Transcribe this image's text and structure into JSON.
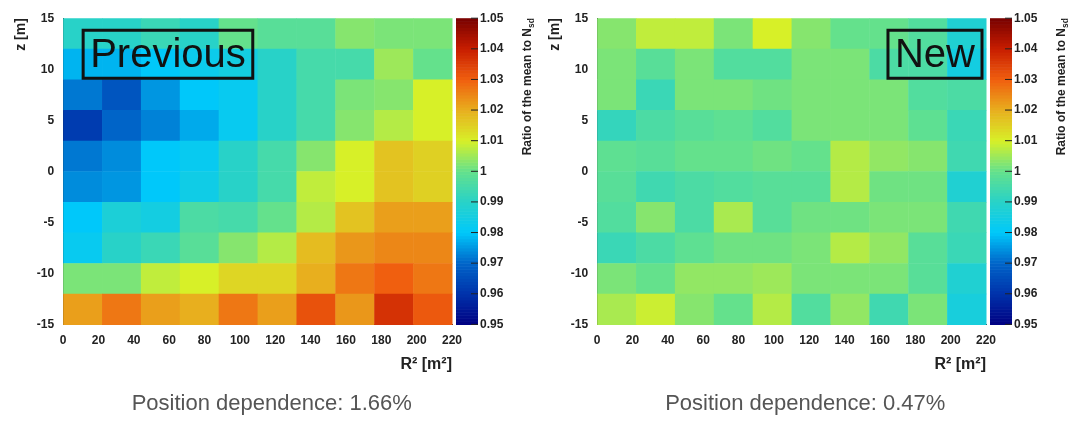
{
  "chart_data": [
    {
      "type": "heatmap",
      "xlabel": "R² [m²]",
      "ylabel": "z [m]",
      "clabel": "Ratio of the mean to N$_{sd}$",
      "xlim": [
        0,
        220
      ],
      "xticks": [
        0,
        20,
        40,
        60,
        80,
        100,
        120,
        140,
        160,
        180,
        200,
        220
      ],
      "ylim": [
        -15,
        15
      ],
      "yticks": [
        -15,
        -10,
        -5,
        0,
        5,
        10,
        15
      ],
      "clim": [
        0.95,
        1.05
      ],
      "cticks": [
        0.95,
        0.96,
        0.97,
        0.98,
        0.99,
        1,
        1.01,
        1.02,
        1.03,
        1.04,
        1.05
      ],
      "cells": [
        [
          0.99,
          0.99,
          0.993,
          0.99,
          1.0,
          0.998,
          0.998,
          1.003,
          1.002,
          1.002
        ],
        [
          0.978,
          0.978,
          0.98,
          0.983,
          0.985,
          0.99,
          0.995,
          0.995,
          1.005,
          1.0
        ],
        [
          0.972,
          0.967,
          0.975,
          0.98,
          0.982,
          0.99,
          0.995,
          1.002,
          1.003,
          1.01
        ],
        [
          0.962,
          0.97,
          0.973,
          0.977,
          0.982,
          0.99,
          0.995,
          1.003,
          1.007,
          1.01
        ],
        [
          0.972,
          0.974,
          0.98,
          0.982,
          0.99,
          0.995,
          1.003,
          1.01,
          1.017,
          1.015
        ],
        [
          0.974,
          0.975,
          0.98,
          0.984,
          0.99,
          0.995,
          1.008,
          1.01,
          1.017,
          1.015
        ],
        [
          0.98,
          0.987,
          0.985,
          0.996,
          0.995,
          1.0,
          1.007,
          1.017,
          1.022,
          1.022
        ],
        [
          0.982,
          0.99,
          0.993,
          0.998,
          1.003,
          1.007,
          1.018,
          1.023,
          1.025,
          1.025
        ],
        [
          1.002,
          1.002,
          1.008,
          1.01,
          1.014,
          1.014,
          1.02,
          1.027,
          1.03,
          1.027
        ],
        [
          1.022,
          1.027,
          1.022,
          1.02,
          1.027,
          1.022,
          1.032,
          1.023,
          1.037,
          1.031
        ]
      ],
      "annotations": [
        "Previous",
        "Position dependence: 1.66%"
      ]
    },
    {
      "type": "heatmap",
      "xlabel": "R² [m²]",
      "ylabel": "z [m]",
      "clabel": "Ratio of the mean to N$_{sd}$",
      "xlim": [
        0,
        220
      ],
      "xticks": [
        0,
        20,
        40,
        60,
        80,
        100,
        120,
        140,
        160,
        180,
        200,
        220
      ],
      "ylim": [
        -15,
        15
      ],
      "yticks": [
        -15,
        -10,
        -5,
        0,
        5,
        10,
        15
      ],
      "clim": [
        0.95,
        1.05
      ],
      "cticks": [
        0.95,
        0.96,
        0.97,
        0.98,
        0.99,
        1,
        1.01,
        1.02,
        1.03,
        1.04,
        1.05
      ],
      "cells": [
        [
          1.003,
          1.008,
          1.008,
          1.002,
          1.01,
          1.003,
          1.0,
          1.0,
          0.997,
          0.988
        ],
        [
          1.002,
          0.998,
          1.002,
          0.997,
          0.997,
          1.002,
          1.002,
          0.996,
          0.996,
          0.985
        ],
        [
          1.002,
          0.993,
          1.002,
          1.002,
          1.001,
          1.002,
          1.002,
          1.002,
          0.997,
          0.996
        ],
        [
          0.992,
          0.996,
          0.998,
          0.999,
          0.997,
          1.002,
          1.002,
          1.002,
          0.999,
          0.993
        ],
        [
          0.999,
          0.998,
          1.0,
          1.0,
          1.001,
          1.0,
          1.007,
          1.004,
          1.003,
          0.994
        ],
        [
          0.998,
          0.994,
          0.996,
          0.997,
          0.998,
          0.998,
          1.007,
          1.001,
          1.001,
          0.988
        ],
        [
          0.997,
          1.003,
          0.996,
          1.006,
          0.998,
          1.001,
          1.001,
          1.002,
          1.002,
          0.994
        ],
        [
          0.993,
          0.996,
          0.999,
          1.001,
          1.001,
          1.002,
          1.007,
          1.004,
          0.998,
          0.993
        ],
        [
          1.002,
          1.0,
          1.004,
          1.004,
          1.005,
          1.002,
          1.002,
          1.002,
          0.998,
          0.988
        ],
        [
          1.006,
          1.009,
          1.003,
          1.0,
          1.007,
          0.997,
          1.004,
          0.994,
          1.002,
          0.986
        ]
      ],
      "annotations": [
        "New",
        "Position dependence: 0.47%"
      ]
    }
  ]
}
